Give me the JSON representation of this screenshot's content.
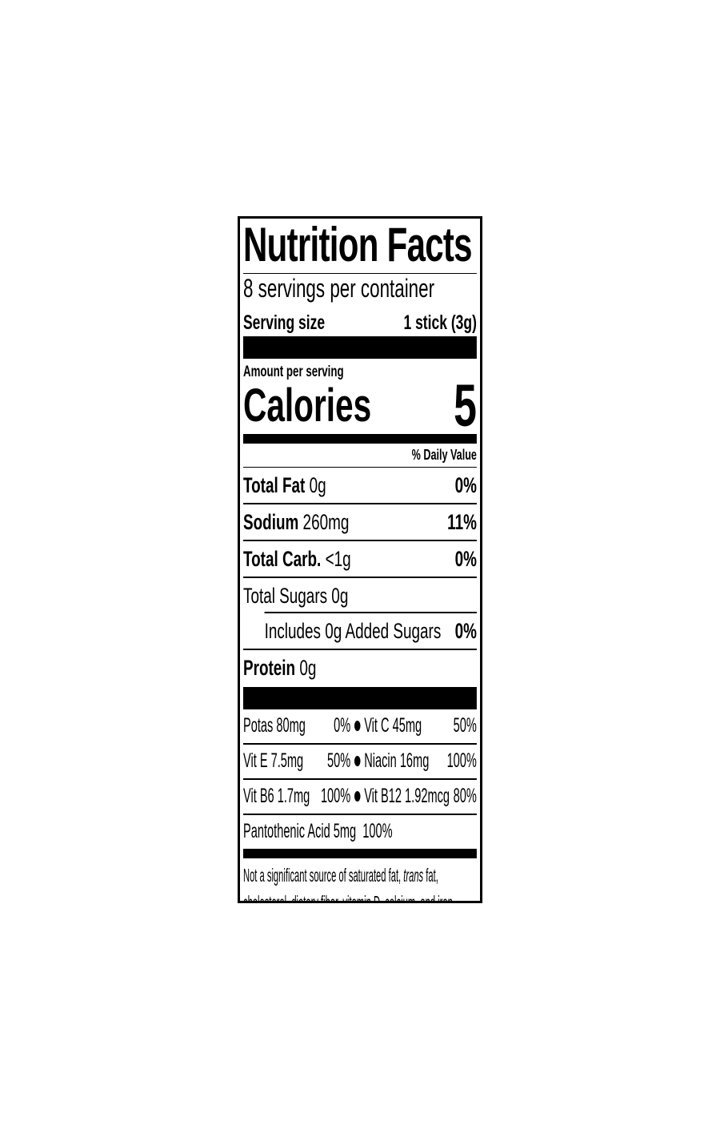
{
  "title": "Nutrition Facts",
  "servings_per_container": "8 servings per container",
  "serving_size": {
    "label": "Serving size",
    "value": "1 stick (3g)"
  },
  "amount_per_serving": "Amount per serving",
  "calories": {
    "label": "Calories",
    "value": "5"
  },
  "daily_value_header": "% Daily Value",
  "nutrients": [
    {
      "name": "Total Fat",
      "amount": "0g",
      "dv": "0%"
    },
    {
      "name": "Sodium",
      "amount": "260mg",
      "dv": "11%"
    },
    {
      "name": "Total Carb.",
      "amount": "<1g",
      "dv": "0%"
    },
    {
      "name": "Total Sugars 0g",
      "amount": "",
      "dv": ""
    },
    {
      "name": "Includes 0g Added Sugars",
      "amount": "",
      "dv": "0%"
    },
    {
      "name": "Protein",
      "amount": "0g",
      "dv": ""
    }
  ],
  "vitamins": [
    {
      "left": {
        "name": "Potas 80mg",
        "dv": "0%"
      },
      "right": {
        "name": "Vit C  45mg",
        "dv": "50%"
      }
    },
    {
      "left": {
        "name": "Vit E  7.5mg",
        "dv": "50%"
      },
      "right": {
        "name": "Niacin 16mg",
        "dv": "100%"
      }
    },
    {
      "left": {
        "name": "Vit B6 1.7mg",
        "dv": "100%"
      },
      "right": {
        "name": "Vit B12 1.92mcg",
        "dv": "80%"
      }
    }
  ],
  "pantothenic": {
    "name": "Pantothenic Acid 5mg",
    "dv": "100%"
  },
  "footnote": {
    "line1_a": "Not a significant source of saturated fat, ",
    "line1_italic": "trans",
    "line1_b": " fat,",
    "line2": "cholesterol, dietary fiber, vitamin D, calcium, and iron."
  }
}
